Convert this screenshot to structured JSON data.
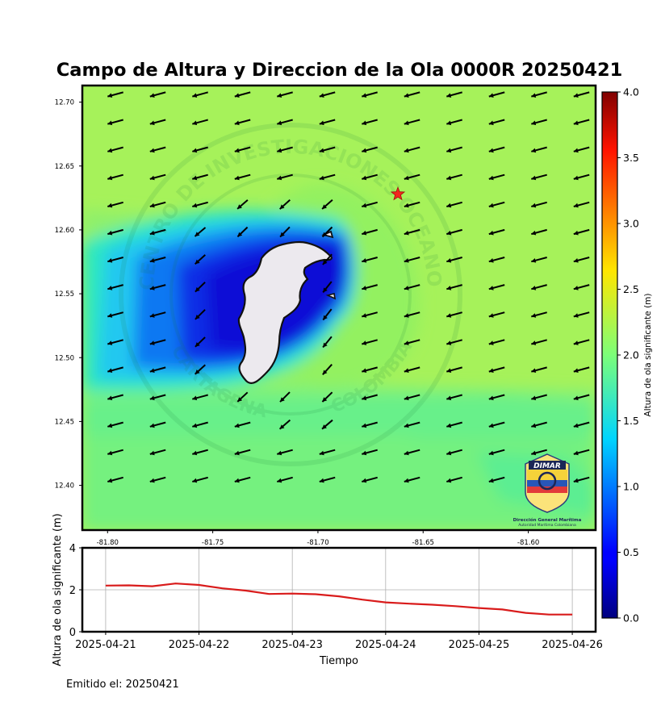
{
  "title": "Campo de Altura y Direccion de la Ola 0000R 20250421",
  "colors": {
    "sea_main": "#a6f25a",
    "sea_mid": "#7ff27a",
    "sea_green": "#66f08a",
    "sea_cyan": "#34f0c8",
    "sea_blue": "#0a78f0",
    "sea_deep": "#0a10d8",
    "island": "#ece9ee",
    "star": "#f2281e",
    "line": "#d91b1b"
  },
  "map": {
    "x_ticks": [
      "-81.80",
      "-81.75",
      "-81.70",
      "-81.65",
      "-81.60"
    ],
    "y_ticks": [
      "12.70",
      "12.65",
      "12.60",
      "12.55",
      "12.50",
      "12.45",
      "12.40"
    ],
    "x_range": [
      -81.812,
      -81.568
    ],
    "y_range": [
      12.365,
      12.713
    ],
    "star": {
      "lon": -81.662,
      "lat": 12.628
    },
    "watermark": {
      "top_text": "CENTRO DE INVESTIGACIONES OCEANOGRAFICAS E HIDROGRAFICAS",
      "bottom_left": "CARTAGENA",
      "bottom_right": "COLOMBIA"
    },
    "logo": {
      "name": "DIMAR",
      "line1": "Dirección General Marítima",
      "line2": "Autoridad Marítima Colombiana"
    }
  },
  "colorbar": {
    "label": "Altura de ola significante (m)",
    "ticks": [
      "0.0",
      "0.5",
      "1.0",
      "1.5",
      "2.0",
      "2.5",
      "3.0",
      "3.5",
      "4.0"
    ],
    "range": [
      0,
      4
    ]
  },
  "chart_data": {
    "type": "line",
    "title": "",
    "xlabel": "Tiempo",
    "ylabel": "Altura de ola significante (m)",
    "x_ticks": [
      "2025-04-21",
      "2025-04-22",
      "2025-04-23",
      "2025-04-24",
      "2025-04-25",
      "2025-04-26"
    ],
    "y_ticks": [
      "0",
      "2",
      "4"
    ],
    "ylim": [
      0,
      4
    ],
    "xlim": [
      "2025-04-20T18:00",
      "2025-04-26T06:00"
    ],
    "grid": true,
    "series": [
      {
        "x": [
          "2025-04-21T00:00",
          "2025-04-21T06:00",
          "2025-04-21T12:00",
          "2025-04-21T18:00",
          "2025-04-22T00:00",
          "2025-04-22T06:00",
          "2025-04-22T12:00",
          "2025-04-22T18:00",
          "2025-04-23T00:00",
          "2025-04-23T06:00",
          "2025-04-23T12:00",
          "2025-04-23T18:00",
          "2025-04-24T00:00",
          "2025-04-24T06:00",
          "2025-04-24T12:00",
          "2025-04-24T18:00",
          "2025-04-25T00:00",
          "2025-04-25T06:00",
          "2025-04-25T12:00",
          "2025-04-25T18:00",
          "2025-04-26T00:00"
        ],
        "values": [
          2.2,
          2.21,
          2.17,
          2.3,
          2.23,
          2.07,
          1.96,
          1.8,
          1.82,
          1.79,
          1.69,
          1.53,
          1.4,
          1.34,
          1.29,
          1.22,
          1.13,
          1.06,
          0.9,
          0.82,
          0.82
        ]
      }
    ]
  },
  "footer": "Emitido el: 20250421"
}
